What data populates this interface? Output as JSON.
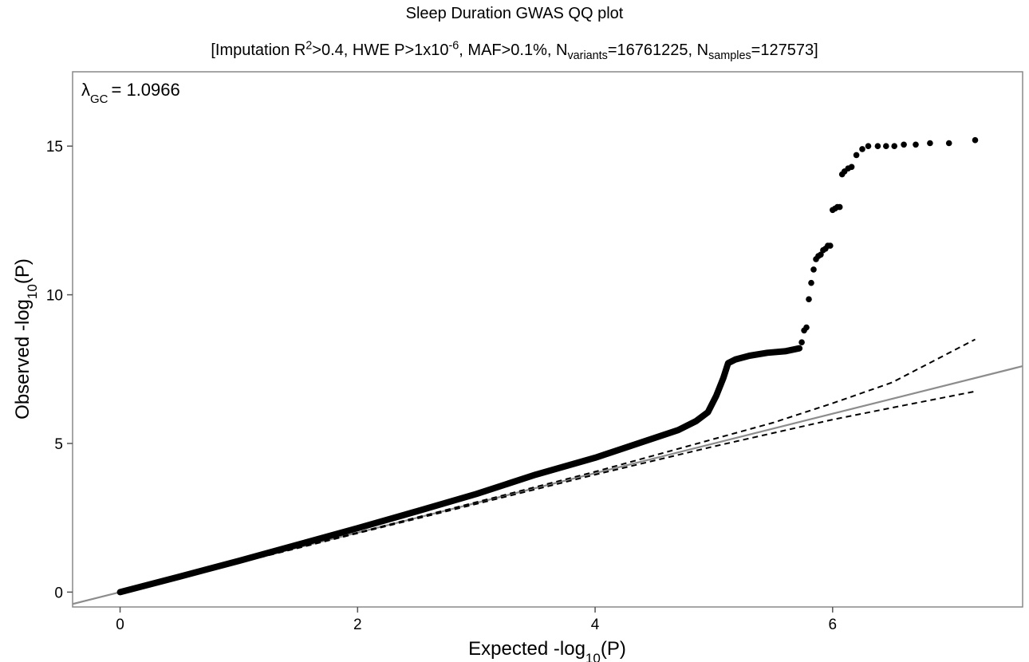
{
  "chart_data": {
    "type": "scatter",
    "title": "Sleep Duration GWAS QQ plot",
    "subtitle": {
      "part1": "[Imputation R",
      "sup1": "2",
      "part2": ">0.4, HWE P>1x10",
      "sup2": "-6",
      "part3": ", MAF>0.1%, N",
      "sub1": "variants",
      "part4": "=16761225, N",
      "sub2": "samples",
      "part5": "=127573]"
    },
    "xlabel": {
      "main": "Expected -log",
      "sub": "10",
      "tail": "(P)"
    },
    "ylabel": {
      "main": "Observed -log",
      "sub": "10",
      "tail": "(P)"
    },
    "annotation": {
      "symbol": "λ",
      "sub": "GC",
      "text": "= 1.0966"
    },
    "xlim": [
      -0.4,
      7.6
    ],
    "ylim": [
      -0.5,
      17.5
    ],
    "x_ticks": [
      0,
      2,
      4,
      6
    ],
    "y_ticks": [
      0,
      5,
      10,
      15
    ],
    "grid": false,
    "colors": {
      "points": "#000000",
      "identity_line": "#8c8c8c",
      "ci_lines": "#000000",
      "frame": "#888888"
    },
    "reference_lines": [
      {
        "name": "identity",
        "style": "solid",
        "slope": 1,
        "intercept": 0
      },
      {
        "name": "ci-upper",
        "style": "dashed",
        "x": [
          0,
          2,
          4,
          5,
          5.5,
          6,
          6.5,
          7.2
        ],
        "y": [
          0,
          2.0,
          4.05,
          5.15,
          5.7,
          6.35,
          7.05,
          8.5
        ]
      },
      {
        "name": "ci-lower",
        "style": "dashed",
        "x": [
          0,
          2,
          4,
          5,
          5.5,
          6,
          6.5,
          7.2
        ],
        "y": [
          0,
          1.98,
          3.95,
          4.9,
          5.35,
          5.8,
          6.2,
          6.75
        ]
      }
    ],
    "points_curve": [
      [
        0,
        0
      ],
      [
        0.5,
        0.52
      ],
      [
        1.0,
        1.05
      ],
      [
        1.5,
        1.6
      ],
      [
        2.0,
        2.15
      ],
      [
        2.5,
        2.72
      ],
      [
        3.0,
        3.3
      ],
      [
        3.5,
        3.95
      ],
      [
        4.0,
        4.52
      ],
      [
        4.4,
        5.05
      ],
      [
        4.7,
        5.45
      ],
      [
        4.85,
        5.75
      ],
      [
        4.95,
        6.05
      ],
      [
        5.02,
        6.6
      ],
      [
        5.08,
        7.2
      ],
      [
        5.12,
        7.7
      ],
      [
        5.18,
        7.82
      ],
      [
        5.3,
        7.95
      ],
      [
        5.45,
        8.05
      ],
      [
        5.6,
        8.1
      ],
      [
        5.72,
        8.2
      ]
    ],
    "points_tail": [
      [
        5.74,
        8.4
      ],
      [
        5.76,
        8.8
      ],
      [
        5.78,
        8.9
      ],
      [
        5.8,
        9.85
      ],
      [
        5.82,
        10.4
      ],
      [
        5.84,
        10.85
      ],
      [
        5.86,
        11.2
      ],
      [
        5.88,
        11.3
      ],
      [
        5.9,
        11.35
      ],
      [
        5.92,
        11.5
      ],
      [
        5.94,
        11.55
      ],
      [
        5.96,
        11.65
      ],
      [
        5.98,
        11.65
      ],
      [
        6.0,
        12.85
      ],
      [
        6.02,
        12.9
      ],
      [
        6.04,
        12.95
      ],
      [
        6.06,
        12.95
      ],
      [
        6.08,
        14.05
      ],
      [
        6.1,
        14.15
      ],
      [
        6.13,
        14.25
      ],
      [
        6.16,
        14.3
      ],
      [
        6.2,
        14.7
      ],
      [
        6.25,
        14.9
      ],
      [
        6.3,
        15.0
      ],
      [
        6.38,
        15.0
      ],
      [
        6.45,
        15.0
      ],
      [
        6.52,
        15.0
      ],
      [
        6.6,
        15.05
      ],
      [
        6.7,
        15.05
      ],
      [
        6.82,
        15.1
      ],
      [
        6.98,
        15.1
      ],
      [
        7.2,
        15.2
      ]
    ]
  }
}
